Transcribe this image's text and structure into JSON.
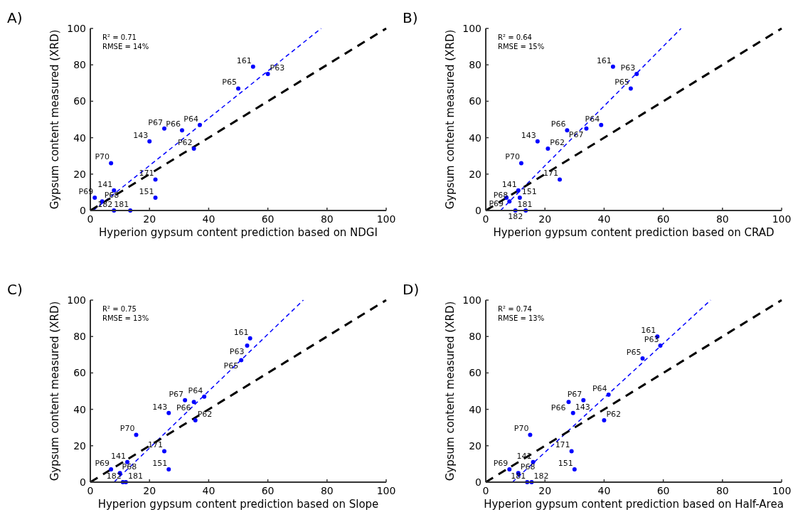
{
  "chart_data": [
    {
      "type": "scatter",
      "title": "A)",
      "xlabel": "Hyperion gypsum content prediction based on NDGI",
      "ylabel": "Gypsum content measured (XRD)",
      "xlim": [
        0,
        100
      ],
      "ylim": [
        0,
        100
      ],
      "xticks": [
        0,
        20,
        40,
        60,
        80,
        100
      ],
      "yticks": [
        0,
        20,
        40,
        60,
        80,
        100
      ],
      "marker": "circle",
      "series": [
        {
          "type": "scatter",
          "color": "#0000ff",
          "x": [
            55,
            60,
            50,
            37,
            31,
            25,
            20,
            35,
            7,
            22,
            8,
            22,
            1.5,
            4,
            8,
            13.5
          ],
          "values": [
            79,
            75,
            67,
            47,
            44,
            45,
            38,
            34,
            26,
            17,
            11,
            7,
            7,
            5,
            0,
            0
          ]
        },
        {
          "type": "line",
          "color": "#0000ff",
          "line_style": "dashed",
          "marker": "none",
          "x": [
            1,
            78
          ],
          "values": [
            0,
            100
          ]
        },
        {
          "type": "line",
          "color": "#000000",
          "line_style": "dashed",
          "marker": "none",
          "x": [
            0,
            100
          ],
          "values": [
            0,
            100
          ]
        }
      ],
      "annotations": [
        "R² = 0.71",
        "RMSE = 14%",
        {
          "text": "161",
          "x": 55,
          "y": 79
        },
        {
          "text": "P63",
          "x": 60,
          "y": 75
        },
        {
          "text": "P65",
          "x": 50,
          "y": 67
        },
        {
          "text": "P64",
          "x": 37,
          "y": 47
        },
        {
          "text": "P66",
          "x": 31,
          "y": 44
        },
        {
          "text": "P67",
          "x": 25,
          "y": 45
        },
        {
          "text": "143",
          "x": 20,
          "y": 38
        },
        {
          "text": "P62",
          "x": 35,
          "y": 34
        },
        {
          "text": "P70",
          "x": 7,
          "y": 26
        },
        {
          "text": "171",
          "x": 22,
          "y": 17
        },
        {
          "text": "141",
          "x": 8,
          "y": 11
        },
        {
          "text": "151",
          "x": 22,
          "y": 7
        },
        {
          "text": "P69",
          "x": 1.5,
          "y": 7
        },
        {
          "text": "P68",
          "x": 4,
          "y": 5
        },
        {
          "text": "182",
          "x": 8,
          "y": 0
        },
        {
          "text": "181",
          "x": 13.5,
          "y": 0
        }
      ]
    },
    {
      "type": "scatter",
      "title": "B)",
      "xlabel": "Hyperion gypsum content prediction based on CRAD",
      "ylabel": "Gypsum content measured (XRD)",
      "xlim": [
        0,
        100
      ],
      "ylim": [
        0,
        100
      ],
      "xticks": [
        0,
        20,
        40,
        60,
        80,
        100
      ],
      "yticks": [
        0,
        20,
        40,
        60,
        80,
        100
      ],
      "marker": "circle",
      "series": [
        {
          "type": "scatter",
          "color": "#0000ff",
          "x": [
            43,
            51,
            49,
            39,
            34,
            27.5,
            17.5,
            21,
            12,
            25,
            11,
            11.5,
            7,
            8,
            10,
            13.5
          ],
          "values": [
            79,
            75,
            67,
            47,
            45,
            44,
            38,
            34,
            26,
            17,
            11,
            7,
            7,
            5,
            0,
            0
          ]
        },
        {
          "type": "line",
          "color": "#0000ff",
          "line_style": "dashed",
          "marker": "none",
          "x": [
            5,
            66
          ],
          "values": [
            0,
            100
          ]
        },
        {
          "type": "line",
          "color": "#000000",
          "line_style": "dashed",
          "marker": "none",
          "x": [
            0,
            100
          ],
          "values": [
            0,
            100
          ]
        }
      ],
      "annotations": [
        "R² = 0.64",
        "RMSE = 15%",
        {
          "text": "161",
          "x": 43,
          "y": 79
        },
        {
          "text": "P63",
          "x": 51,
          "y": 75
        },
        {
          "text": "P65",
          "x": 49,
          "y": 67
        },
        {
          "text": "P64",
          "x": 39,
          "y": 47
        },
        {
          "text": "P67",
          "x": 34,
          "y": 45
        },
        {
          "text": "P66",
          "x": 27.5,
          "y": 44
        },
        {
          "text": "143",
          "x": 17.5,
          "y": 38
        },
        {
          "text": "P62",
          "x": 21,
          "y": 34
        },
        {
          "text": "P70",
          "x": 12,
          "y": 26
        },
        {
          "text": "171",
          "x": 25,
          "y": 17
        },
        {
          "text": "141",
          "x": 11,
          "y": 11
        },
        {
          "text": "151",
          "x": 11.5,
          "y": 7
        },
        {
          "text": "P69",
          "x": 7,
          "y": 7
        },
        {
          "text": "P68",
          "x": 8,
          "y": 5
        },
        {
          "text": "181",
          "x": 10,
          "y": 0
        },
        {
          "text": "182",
          "x": 13.5,
          "y": 0
        }
      ]
    },
    {
      "type": "scatter",
      "title": "C)",
      "xlabel": "Hyperion gypsum content prediction based on Slope",
      "ylabel": "Gypsum content measured (XRD)",
      "xlim": [
        0,
        100
      ],
      "ylim": [
        0,
        100
      ],
      "xticks": [
        0,
        20,
        40,
        60,
        80,
        100
      ],
      "yticks": [
        0,
        20,
        40,
        60,
        80,
        100
      ],
      "marker": "circle",
      "series": [
        {
          "type": "scatter",
          "color": "#0000ff",
          "x": [
            54,
            53,
            51,
            38.5,
            35,
            32,
            26.5,
            35.5,
            15.5,
            25,
            12.5,
            26.5,
            7,
            10,
            11,
            12
          ],
          "values": [
            79,
            75,
            67,
            47,
            44,
            45,
            38,
            34,
            26,
            17,
            11,
            7,
            7,
            5,
            0,
            0
          ]
        },
        {
          "type": "line",
          "color": "#0000ff",
          "line_style": "dashed",
          "marker": "none",
          "x": [
            8,
            72
          ],
          "values": [
            0,
            100
          ]
        },
        {
          "type": "line",
          "color": "#000000",
          "line_style": "dashed",
          "marker": "none",
          "x": [
            0,
            100
          ],
          "values": [
            0,
            100
          ]
        }
      ],
      "annotations": [
        "R² = 0.75",
        "RMSE = 13%",
        {
          "text": "161",
          "x": 54,
          "y": 79
        },
        {
          "text": "P63",
          "x": 53,
          "y": 75
        },
        {
          "text": "P65",
          "x": 51,
          "y": 67
        },
        {
          "text": "P64",
          "x": 38.5,
          "y": 47
        },
        {
          "text": "P66",
          "x": 35,
          "y": 44
        },
        {
          "text": "P67",
          "x": 32,
          "y": 45
        },
        {
          "text": "143",
          "x": 26.5,
          "y": 38
        },
        {
          "text": "P62",
          "x": 35.5,
          "y": 34
        },
        {
          "text": "P70",
          "x": 15.5,
          "y": 26
        },
        {
          "text": "171",
          "x": 25,
          "y": 17
        },
        {
          "text": "141",
          "x": 12.5,
          "y": 11
        },
        {
          "text": "151",
          "x": 26.5,
          "y": 7
        },
        {
          "text": "P69",
          "x": 7,
          "y": 7
        },
        {
          "text": "P68",
          "x": 10,
          "y": 5
        },
        {
          "text": "182",
          "x": 11,
          "y": 0
        },
        {
          "text": "181",
          "x": 12,
          "y": 0
        }
      ]
    },
    {
      "type": "scatter",
      "title": "D)",
      "xlabel": "Hyperion gypsum content prediction based on Half-Area",
      "ylabel": "Gypsum content measured (XRD)",
      "xlim": [
        0,
        100
      ],
      "ylim": [
        0,
        100
      ],
      "xticks": [
        0,
        20,
        40,
        60,
        80,
        100
      ],
      "yticks": [
        0,
        20,
        40,
        60,
        80,
        100
      ],
      "marker": "circle",
      "series": [
        {
          "type": "scatter",
          "color": "#0000ff",
          "x": [
            58,
            59,
            53,
            41.5,
            33,
            28,
            29.5,
            40,
            15,
            29,
            16,
            30,
            8,
            11,
            14,
            15.5
          ],
          "values": [
            80,
            75,
            68,
            48,
            45,
            44,
            38,
            34,
            26,
            17,
            11,
            7,
            7,
            5,
            0,
            0
          ]
        },
        {
          "type": "line",
          "color": "#0000ff",
          "line_style": "dashed",
          "marker": "none",
          "x": [
            9,
            76
          ],
          "values": [
            0,
            100
          ]
        },
        {
          "type": "line",
          "color": "#000000",
          "line_style": "dashed",
          "marker": "none",
          "x": [
            0,
            100
          ],
          "values": [
            0,
            100
          ]
        }
      ],
      "annotations": [
        "R² = 0.74",
        "RMSE = 13%",
        {
          "text": "161",
          "x": 58,
          "y": 80
        },
        {
          "text": "P63",
          "x": 59,
          "y": 75
        },
        {
          "text": "P65",
          "x": 53,
          "y": 68
        },
        {
          "text": "P64",
          "x": 41.5,
          "y": 48
        },
        {
          "text": "P67",
          "x": 33,
          "y": 45
        },
        {
          "text": "P66",
          "x": 28,
          "y": 44
        },
        {
          "text": "143",
          "x": 29.5,
          "y": 38
        },
        {
          "text": "P62",
          "x": 40,
          "y": 34
        },
        {
          "text": "P70",
          "x": 15,
          "y": 26
        },
        {
          "text": "171",
          "x": 29,
          "y": 17
        },
        {
          "text": "141",
          "x": 16,
          "y": 11
        },
        {
          "text": "151",
          "x": 30,
          "y": 7
        },
        {
          "text": "P69",
          "x": 8,
          "y": 7
        },
        {
          "text": "P68",
          "x": 11,
          "y": 5
        },
        {
          "text": "181",
          "x": 14,
          "y": 0
        },
        {
          "text": "182",
          "x": 15.5,
          "y": 0
        }
      ]
    }
  ]
}
